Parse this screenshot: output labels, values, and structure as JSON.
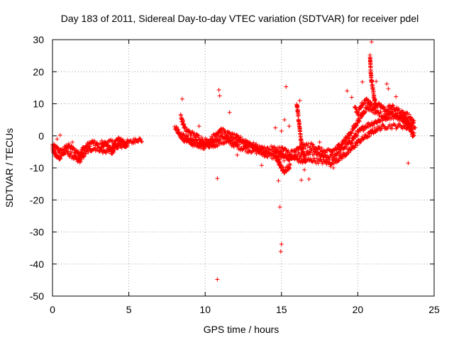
{
  "chart_data": {
    "type": "scatter",
    "title": "Day 183 of 2011, Sidereal Day-to-day VTEC variation (SDTVAR) for receiver pdel",
    "xlabel": "GPS time / hours",
    "ylabel": "SDTVAR / TECUs",
    "xlim": [
      0,
      25
    ],
    "ylim": [
      -50,
      30
    ],
    "xticks": [
      0,
      5,
      10,
      15,
      20,
      25
    ],
    "yticks": [
      -50,
      -40,
      -30,
      -20,
      -10,
      0,
      10,
      20,
      30
    ],
    "grid": true,
    "marker": "+",
    "color": "#ff0000",
    "series": [
      {
        "name": "SDTVAR",
        "dense_bands": [
          [
            [
              0.0,
              -3
            ],
            [
              0.3,
              -4
            ],
            [
              0.5,
              -5
            ],
            [
              0.8,
              -4
            ],
            [
              1.0,
              -3
            ],
            [
              1.3,
              -4
            ],
            [
              1.6,
              -5
            ],
            [
              1.8,
              -6
            ],
            [
              2.0,
              -4
            ],
            [
              2.3,
              -3
            ],
            [
              2.6,
              -2
            ],
            [
              3.0,
              -3
            ],
            [
              3.3,
              -3
            ],
            [
              3.6,
              -2
            ],
            [
              4.0,
              -2
            ],
            [
              4.4,
              -1
            ],
            [
              4.8,
              -2
            ],
            [
              5.2,
              -2
            ],
            [
              5.5,
              -1
            ],
            [
              5.9,
              -1.5
            ]
          ],
          [
            [
              0.0,
              -4
            ],
            [
              0.2,
              -6
            ],
            [
              0.4,
              -7
            ],
            [
              0.6,
              -6
            ],
            [
              0.9,
              -5
            ],
            [
              1.2,
              -6
            ],
            [
              1.5,
              -7
            ],
            [
              1.7,
              -8
            ],
            [
              1.9,
              -7
            ],
            [
              2.2,
              -5
            ],
            [
              2.6,
              -4
            ],
            [
              3.0,
              -4
            ],
            [
              3.4,
              -5
            ],
            [
              3.8,
              -4
            ],
            [
              4.2,
              -3
            ],
            [
              4.6,
              -3
            ]
          ],
          [
            [
              3.2,
              -2
            ],
            [
              3.5,
              -3
            ],
            [
              3.7,
              -4
            ],
            [
              3.9,
              -5
            ],
            [
              4.1,
              -4
            ],
            [
              4.3,
              -3
            ],
            [
              4.5,
              -2
            ],
            [
              4.8,
              -3
            ],
            [
              5.0,
              -2
            ]
          ],
          [
            [
              8.0,
              3
            ],
            [
              8.5,
              0
            ],
            [
              9.0,
              -1
            ],
            [
              9.5,
              -2
            ],
            [
              10.0,
              -3
            ],
            [
              10.5,
              -3
            ],
            [
              11.0,
              -2
            ],
            [
              11.5,
              -2
            ],
            [
              12.0,
              -3
            ],
            [
              12.5,
              -4
            ],
            [
              13.0,
              -4.5
            ],
            [
              13.5,
              -5
            ],
            [
              14.0,
              -6
            ],
            [
              14.5,
              -6.5
            ],
            [
              15.0,
              -7
            ],
            [
              15.5,
              -7
            ],
            [
              16.0,
              -6
            ],
            [
              16.5,
              -6
            ],
            [
              17.0,
              -5
            ],
            [
              17.5,
              -6
            ],
            [
              18.0,
              -7
            ],
            [
              18.5,
              -6
            ],
            [
              19.0,
              -4
            ],
            [
              19.5,
              -2
            ],
            [
              20.0,
              1
            ],
            [
              20.5,
              3
            ],
            [
              21.0,
              4
            ],
            [
              21.5,
              5
            ],
            [
              22.0,
              6
            ],
            [
              22.5,
              6
            ],
            [
              23.0,
              5
            ],
            [
              23.5,
              4
            ],
            [
              23.8,
              3
            ]
          ],
          [
            [
              8.2,
              1
            ],
            [
              8.6,
              -1
            ],
            [
              9.2,
              -2.5
            ],
            [
              9.8,
              -3.5
            ],
            [
              10.3,
              -3
            ],
            [
              10.8,
              -1
            ],
            [
              11.2,
              0
            ],
            [
              11.6,
              -1
            ],
            [
              12.2,
              -2
            ],
            [
              12.8,
              -3
            ],
            [
              13.4,
              -4
            ],
            [
              14.0,
              -5
            ],
            [
              14.6,
              -5
            ],
            [
              15.2,
              -6
            ],
            [
              15.8,
              -7
            ],
            [
              16.4,
              -8
            ],
            [
              17.0,
              -7.5
            ],
            [
              17.6,
              -8
            ],
            [
              18.2,
              -8.5
            ],
            [
              18.8,
              -7
            ],
            [
              19.4,
              -5
            ],
            [
              20.0,
              -2
            ],
            [
              20.6,
              0
            ],
            [
              21.2,
              2
            ],
            [
              21.8,
              3
            ],
            [
              22.4,
              3
            ],
            [
              23.0,
              3
            ],
            [
              23.6,
              2
            ]
          ],
          [
            [
              8.4,
              6
            ],
            [
              8.7,
              2
            ],
            [
              9.0,
              1
            ],
            [
              9.4,
              0
            ],
            [
              9.8,
              -1
            ],
            [
              10.2,
              -2
            ],
            [
              10.6,
              0
            ],
            [
              11.0,
              2
            ],
            [
              11.3,
              1
            ],
            [
              11.8,
              0
            ],
            [
              12.3,
              -1
            ],
            [
              12.8,
              -2
            ],
            [
              13.2,
              -3
            ],
            [
              13.6,
              -4
            ],
            [
              14.1,
              -4
            ],
            [
              14.6,
              -4
            ],
            [
              15.0,
              -4
            ],
            [
              15.4,
              -5
            ],
            [
              15.8,
              -5
            ],
            [
              16.2,
              -4
            ],
            [
              16.6,
              -3
            ],
            [
              17.0,
              -3
            ],
            [
              17.4,
              -4
            ],
            [
              17.8,
              -5
            ],
            [
              18.2,
              -5
            ],
            [
              18.6,
              -4
            ],
            [
              19.0,
              -2
            ],
            [
              19.4,
              0
            ],
            [
              19.8,
              3
            ],
            [
              20.2,
              6
            ],
            [
              20.6,
              9
            ],
            [
              21.0,
              8
            ],
            [
              21.4,
              7
            ],
            [
              21.8,
              6
            ],
            [
              22.2,
              7
            ],
            [
              22.6,
              6
            ],
            [
              23.0,
              5
            ],
            [
              23.4,
              3
            ]
          ],
          [
            [
              14.6,
              -6
            ],
            [
              14.8,
              -8
            ],
            [
              15.0,
              -10
            ],
            [
              15.2,
              -11
            ],
            [
              15.4,
              -10
            ],
            [
              15.6,
              -9
            ]
          ],
          [
            [
              16.0,
              10
            ],
            [
              16.1,
              6
            ],
            [
              16.2,
              2
            ],
            [
              16.3,
              -2
            ],
            [
              16.4,
              -5
            ],
            [
              16.5,
              -7
            ],
            [
              16.6,
              -8
            ]
          ],
          [
            [
              20.8,
              25
            ],
            [
              20.85,
              20
            ],
            [
              20.9,
              17
            ],
            [
              21.0,
              14
            ],
            [
              21.1,
              11
            ],
            [
              21.2,
              9
            ]
          ],
          [
            [
              19.8,
              9
            ],
            [
              20.0,
              7
            ],
            [
              20.3,
              10
            ],
            [
              20.6,
              11
            ],
            [
              21.0,
              9
            ],
            [
              21.4,
              10
            ],
            [
              21.8,
              8
            ],
            [
              22.2,
              9
            ],
            [
              22.6,
              8
            ],
            [
              23.0,
              7
            ],
            [
              23.4,
              6
            ],
            [
              23.7,
              4
            ]
          ],
          [
            [
              23.0,
              6
            ],
            [
              23.2,
              4
            ],
            [
              23.4,
              3
            ],
            [
              23.5,
              2
            ],
            [
              23.6,
              0
            ],
            [
              23.7,
              1
            ]
          ]
        ],
        "outliers": [
          [
            0.5,
            0.2
          ],
          [
            0.3,
            -1
          ],
          [
            1.3,
            -2
          ],
          [
            8.5,
            11.5
          ],
          [
            8.2,
            1
          ],
          [
            10.9,
            14.3
          ],
          [
            10.95,
            12.5
          ],
          [
            11.6,
            7.3
          ],
          [
            10.8,
            -13.3
          ],
          [
            10.8,
            -44.8
          ],
          [
            12.1,
            -3.2
          ],
          [
            12.1,
            -6
          ],
          [
            13.7,
            -9.2
          ],
          [
            14.8,
            -14
          ],
          [
            14.9,
            -22.2
          ],
          [
            15.0,
            -33.8
          ],
          [
            14.95,
            -36.1
          ],
          [
            15.3,
            15.3
          ],
          [
            14.6,
            2.5
          ],
          [
            15.0,
            1.5
          ],
          [
            15.5,
            3
          ],
          [
            15.2,
            5
          ],
          [
            16.3,
            -13.8
          ],
          [
            16.8,
            -13.5
          ],
          [
            16.5,
            -10.6
          ],
          [
            18.2,
            -9.5
          ],
          [
            18.4,
            -10
          ],
          [
            19.3,
            14
          ],
          [
            19.6,
            12
          ],
          [
            20.3,
            16.8
          ],
          [
            20.9,
            29.3
          ],
          [
            21.2,
            17
          ],
          [
            21.9,
            16.2
          ],
          [
            22.0,
            14.7
          ],
          [
            22.5,
            12.2
          ],
          [
            23.3,
            -8.5
          ],
          [
            17.5,
            -2
          ],
          [
            16.2,
            11
          ],
          [
            12.8,
            -5
          ],
          [
            9.6,
            3
          ]
        ]
      }
    ]
  }
}
